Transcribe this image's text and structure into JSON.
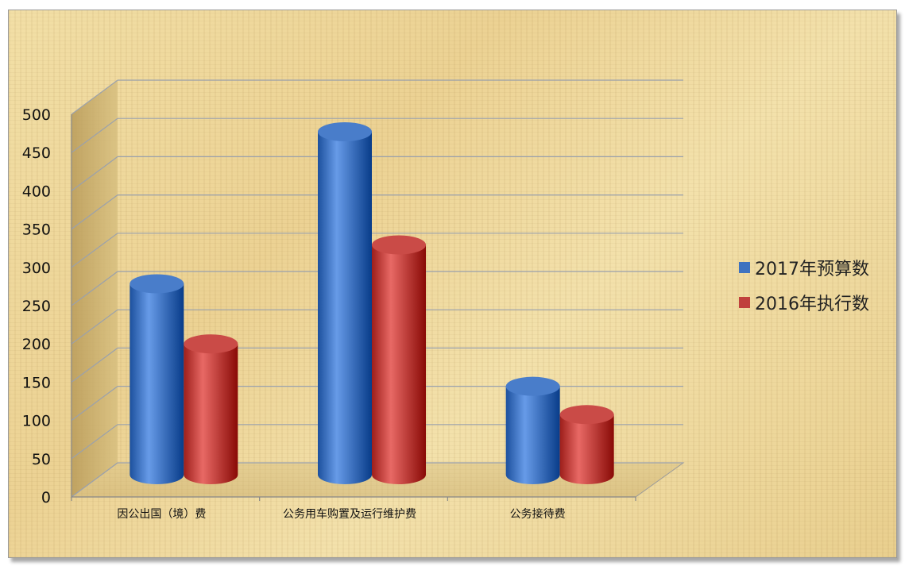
{
  "chart_data": {
    "type": "bar",
    "categories": [
      "因公出国（境）费",
      "公务用车购置及运行维护费",
      "公务接待费"
    ],
    "series": [
      {
        "name": "2017年预算数",
        "values": [
          270,
          485,
          125
        ],
        "color": "#3f73c0"
      },
      {
        "name": "2016年执行数",
        "values": [
          185,
          325,
          85
        ],
        "color": "#c0413d"
      }
    ],
    "yticks": [
      0,
      50,
      100,
      150,
      200,
      250,
      300,
      350,
      400,
      450,
      500
    ],
    "ylim": [
      0,
      500
    ],
    "title": "",
    "xlabel": "",
    "ylabel": "",
    "grid": true,
    "legend_position": "right",
    "style": "3d-cylinder"
  }
}
